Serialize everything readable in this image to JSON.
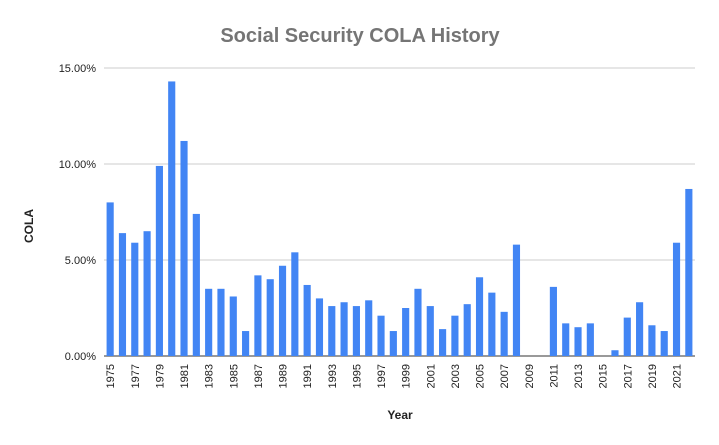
{
  "chart_data": {
    "type": "bar",
    "title": "Social Security COLA History",
    "xlabel": "Year",
    "ylabel": "COLA",
    "ylim": [
      0,
      15
    ],
    "yticks": [
      "0.00%",
      "5.00%",
      "10.00%",
      "15.00%"
    ],
    "ytick_values": [
      0,
      5,
      10,
      15
    ],
    "grid": true,
    "bar_color": "#4285f4",
    "grid_color": "#cccccc",
    "categories": [
      "1975",
      "1976",
      "1977",
      "1978",
      "1979",
      "1980",
      "1981",
      "1982",
      "1983",
      "1984",
      "1985",
      "1986",
      "1987",
      "1988",
      "1989",
      "1990",
      "1991",
      "1992",
      "1993",
      "1994",
      "1995",
      "1996",
      "1997",
      "1998",
      "1999",
      "2000",
      "2001",
      "2002",
      "2003",
      "2004",
      "2005",
      "2006",
      "2007",
      "2008",
      "2009",
      "2010",
      "2011",
      "2012",
      "2013",
      "2014",
      "2015",
      "2016",
      "2017",
      "2018",
      "2019",
      "2020",
      "2021",
      "2022"
    ],
    "tick_labels": [
      "1975",
      "",
      "1977",
      "",
      "1979",
      "",
      "1981",
      "",
      "1983",
      "",
      "1985",
      "",
      "1987",
      "",
      "1989",
      "",
      "1991",
      "",
      "1993",
      "",
      "1995",
      "",
      "1997",
      "",
      "1999",
      "",
      "2001",
      "",
      "2003",
      "",
      "2005",
      "",
      "2007",
      "",
      "2009",
      "",
      "2011",
      "",
      "2013",
      "",
      "2015",
      "",
      "2017",
      "",
      "2019",
      "",
      "2021",
      ""
    ],
    "values": [
      8.0,
      6.4,
      5.9,
      6.5,
      9.9,
      14.3,
      11.2,
      7.4,
      3.5,
      3.5,
      3.1,
      1.3,
      4.2,
      4.0,
      4.7,
      5.4,
      3.7,
      3.0,
      2.6,
      2.8,
      2.6,
      2.9,
      2.1,
      1.3,
      2.5,
      3.5,
      2.6,
      1.4,
      2.1,
      2.7,
      4.1,
      3.3,
      2.3,
      5.8,
      0.0,
      0.0,
      3.6,
      1.7,
      1.5,
      1.7,
      0.0,
      0.3,
      2.0,
      2.8,
      1.6,
      1.3,
      5.9,
      8.7
    ]
  }
}
